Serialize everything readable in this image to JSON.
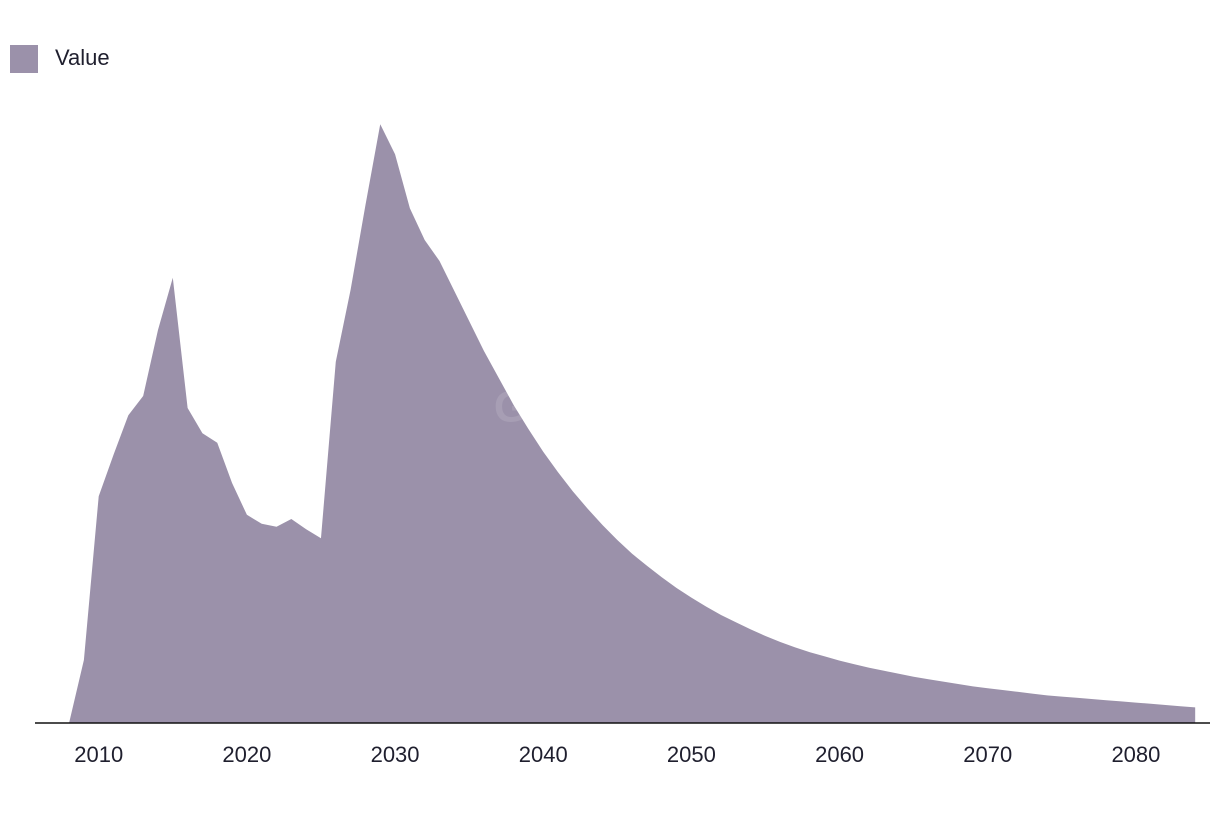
{
  "chart_data": {
    "type": "area",
    "watermark": "GlobalData",
    "x": [
      2008,
      2009,
      2010,
      2011,
      2012,
      2013,
      2014,
      2015,
      2016,
      2017,
      2018,
      2019,
      2020,
      2021,
      2022,
      2023,
      2024,
      2025,
      2026,
      2027,
      2028,
      2029,
      2030,
      2031,
      2032,
      2033,
      2034,
      2035,
      2036,
      2037,
      2038,
      2039,
      2040,
      2041,
      2042,
      2043,
      2044,
      2045,
      2046,
      2047,
      2048,
      2049,
      2050,
      2051,
      2052,
      2053,
      2054,
      2055,
      2056,
      2057,
      2058,
      2059,
      2060,
      2061,
      2062,
      2063,
      2064,
      2065,
      2066,
      2067,
      2068,
      2069,
      2070,
      2071,
      2072,
      2073,
      2074,
      2075,
      2076,
      2077,
      2078,
      2079,
      2080,
      2081,
      2082,
      2083,
      2084
    ],
    "series": [
      {
        "name": "Value",
        "color": "#9b91aa",
        "values": [
          0,
          10.5,
          37.8,
          44.7,
          51.3,
          54.5,
          65.5,
          74.2,
          52.5,
          48.3,
          46.7,
          40,
          34.7,
          33.2,
          32.7,
          34,
          32.3,
          30.8,
          60.2,
          72.2,
          86.3,
          99.8,
          94.8,
          85.8,
          80.5,
          77,
          72,
          67,
          62,
          57.5,
          53,
          49,
          45.2,
          41.8,
          38.6,
          35.7,
          33,
          30.5,
          28.2,
          26.2,
          24.3,
          22.5,
          20.9,
          19.4,
          18,
          16.8,
          15.6,
          14.5,
          13.5,
          12.6,
          11.8,
          11.1,
          10.4,
          9.8,
          9.2,
          8.7,
          8.2,
          7.7,
          7.3,
          6.9,
          6.5,
          6.1,
          5.8,
          5.5,
          5.2,
          4.9,
          4.6,
          4.4,
          4.2,
          4,
          3.8,
          3.6,
          3.4,
          3.2,
          3,
          2.8,
          2.6
        ]
      }
    ],
    "xlim": [
      2005.7,
      2085
    ],
    "xticks": [
      2010,
      2020,
      2030,
      2040,
      2050,
      2060,
      2070,
      2080
    ],
    "ylim": [
      0,
      100
    ],
    "legend": "top-left"
  }
}
